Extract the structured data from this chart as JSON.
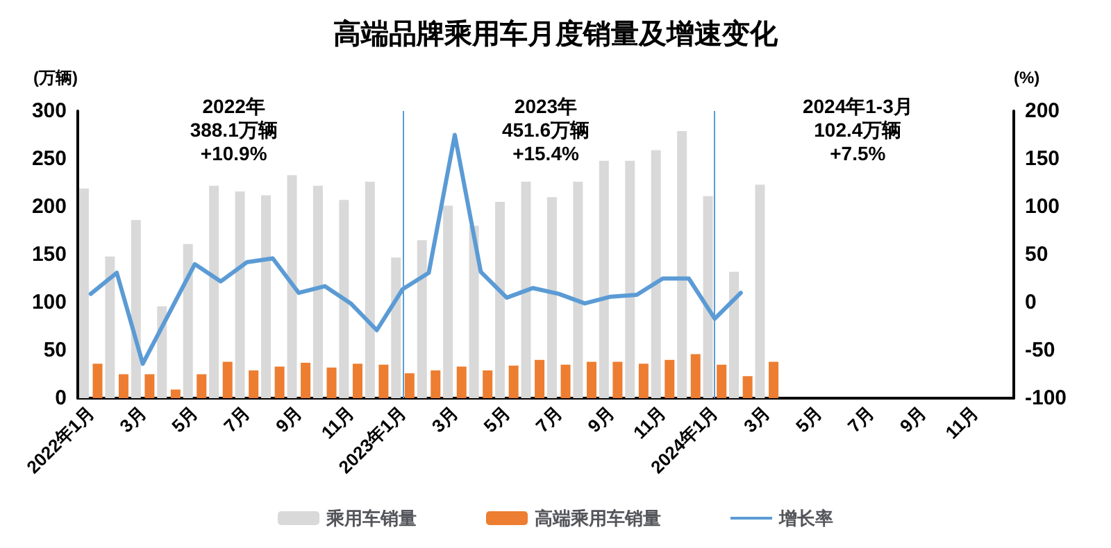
{
  "chart_data": {
    "type": "bar",
    "title": "高端品牌乘用车月度销量及增速变化",
    "ylabel": "(万辆)",
    "y2label": "(%)",
    "categories": [
      "2022年1月",
      null,
      "3月",
      null,
      "5月",
      null,
      "7月",
      null,
      "9月",
      null,
      "11月",
      null,
      "2023年1月",
      null,
      "3月",
      null,
      "5月",
      null,
      "7月",
      null,
      "9月",
      null,
      "11月",
      null,
      "2024年1月",
      null,
      "3月",
      null,
      "5月",
      null,
      "7月",
      null,
      "9月",
      null,
      "11月",
      null
    ],
    "series": [
      {
        "name": "乘用车销量",
        "color": "#d9d9d9",
        "values": [
          219,
          148,
          186,
          96,
          161,
          222,
          216,
          212,
          233,
          222,
          207,
          226,
          147,
          165,
          201,
          180,
          205,
          226,
          210,
          226,
          248,
          248,
          259,
          279,
          211,
          132,
          223,
          null,
          null,
          null,
          null,
          null,
          null,
          null,
          null,
          null
        ]
      },
      {
        "name": "高端乘用车销量",
        "color": "#ed7d31",
        "values": [
          36,
          25,
          25,
          9,
          25,
          38,
          29,
          33,
          37,
          32,
          36,
          35,
          26,
          29,
          33,
          29,
          34,
          40,
          35,
          38,
          38,
          36,
          40,
          46,
          35,
          23,
          38,
          null,
          null,
          null,
          null,
          null,
          null,
          null,
          null,
          null
        ]
      },
      {
        "name": "增长率",
        "type": "line",
        "axis": "y2",
        "color": "#5b9bd5",
        "values": [
          9,
          31,
          -64,
          -12,
          40,
          22,
          42,
          46,
          10,
          17,
          -1,
          -29,
          14,
          31,
          175,
          32,
          5,
          15,
          9,
          -1,
          6,
          8,
          25,
          25,
          -17,
          10,
          null,
          null,
          null,
          null,
          null,
          null,
          null,
          null,
          null,
          null
        ]
      }
    ],
    "ylim": [
      0,
      300
    ],
    "yticks": [
      0,
      50,
      100,
      150,
      200,
      250,
      300
    ],
    "y2lim": [
      -100,
      200
    ],
    "y2ticks": [
      -100,
      -50,
      0,
      50,
      100,
      150,
      200
    ],
    "ref_lines": [
      {
        "axis": "x",
        "value": "2023年1月",
        "color": "#5b9bd5"
      },
      {
        "axis": "x",
        "value": "2024年1月",
        "color": "#5b9bd5"
      }
    ],
    "annotations": [
      "2022年\n388.1万辆\n+10.9%",
      "2023年\n451.6万辆\n+15.4%",
      "2024年1-3月\n102.4万辆\n+7.5%"
    ],
    "grid": false,
    "legend": "bottom",
    "marker": "none",
    "line_style": "solid"
  }
}
